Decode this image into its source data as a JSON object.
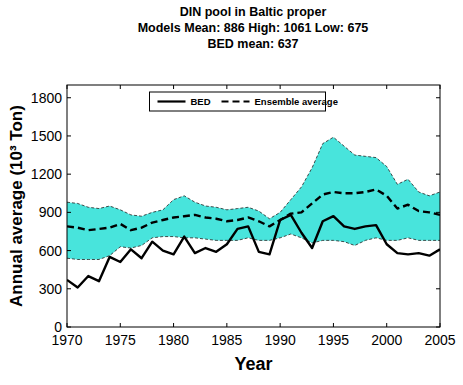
{
  "chart_data": {
    "type": "line",
    "title": "DIN pool in Baltic proper",
    "subtitle": [
      "Models Mean: 886  High: 1061  Low: 675",
      "BED mean: 637"
    ],
    "x_label": "Year",
    "y_label": "Annual average (10³ Ton)",
    "x": [
      1970,
      1971,
      1972,
      1973,
      1974,
      1975,
      1976,
      1977,
      1978,
      1979,
      1980,
      1981,
      1982,
      1983,
      1984,
      1985,
      1986,
      1987,
      1988,
      1989,
      1990,
      1991,
      1992,
      1993,
      1994,
      1995,
      1996,
      1997,
      1998,
      1999,
      2000,
      2001,
      2002,
      2003,
      2004,
      2005
    ],
    "xlim": [
      1970,
      2005
    ],
    "xticks": [
      1970,
      1975,
      1980,
      1985,
      1990,
      1995,
      2000,
      2005
    ],
    "ylim": [
      0,
      1900
    ],
    "yticks": [
      0,
      300,
      600,
      900,
      1200,
      1500,
      1800
    ],
    "grid": false,
    "legend": "top",
    "band": {
      "color": "#48e4dc",
      "line_style": "dashed",
      "upper": [
        980,
        970,
        940,
        930,
        950,
        920,
        880,
        870,
        900,
        920,
        1000,
        1030,
        980,
        950,
        940,
        920,
        930,
        940,
        910,
        850,
        900,
        1000,
        1100,
        1250,
        1440,
        1490,
        1420,
        1350,
        1340,
        1330,
        1260,
        1120,
        1160,
        1060,
        1030,
        1060
      ],
      "lower": [
        540,
        530,
        530,
        530,
        560,
        630,
        620,
        640,
        700,
        710,
        710,
        700,
        700,
        690,
        680,
        680,
        680,
        700,
        680,
        680,
        700,
        730,
        700,
        660,
        680,
        680,
        670,
        640,
        680,
        700,
        680,
        680,
        700,
        680,
        680,
        680
      ]
    },
    "series": [
      {
        "name": "BED",
        "color": "#000000",
        "line_style": "solid",
        "values": [
          370,
          310,
          400,
          360,
          550,
          510,
          610,
          540,
          670,
          600,
          570,
          710,
          580,
          620,
          590,
          650,
          770,
          790,
          590,
          570,
          840,
          880,
          740,
          620,
          830,
          870,
          790,
          770,
          790,
          800,
          650,
          580,
          570,
          580,
          560,
          610
        ]
      },
      {
        "name": "Ensemble average",
        "color": "#000000",
        "line_style": "dashed",
        "values": [
          790,
          780,
          760,
          770,
          780,
          810,
          760,
          780,
          820,
          840,
          860,
          870,
          880,
          860,
          850,
          830,
          840,
          860,
          830,
          790,
          840,
          890,
          900,
          970,
          1040,
          1060,
          1050,
          1050,
          1060,
          1080,
          1030,
          930,
          960,
          910,
          900,
          880
        ]
      }
    ]
  }
}
